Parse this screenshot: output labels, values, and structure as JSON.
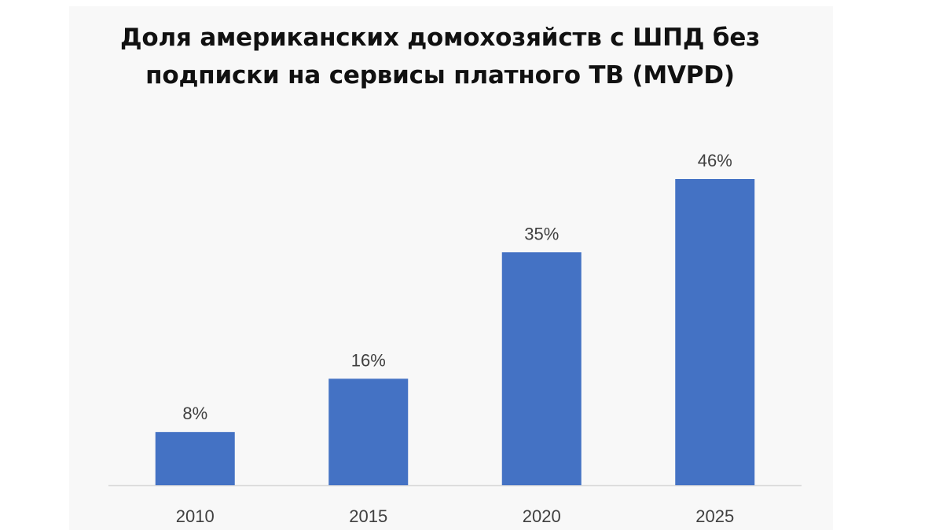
{
  "chart_data": {
    "type": "bar",
    "title_lines": [
      "Доля американских домохозяйств с ШПД без",
      "подписки на сервисы платного ТВ (MVPD)"
    ],
    "categories": [
      "2010",
      "2015",
      "2020",
      "2025"
    ],
    "values": [
      8,
      16,
      35,
      46
    ],
    "data_labels": [
      "8%",
      "16%",
      "35%",
      "46%"
    ],
    "unit": "%",
    "ylim": [
      0,
      50
    ],
    "grid": false,
    "legend": "none",
    "colors": {
      "bar": "#4472c4",
      "axis": "#d9d9d9",
      "label_text": "#404040",
      "title_text": "#111111"
    }
  }
}
